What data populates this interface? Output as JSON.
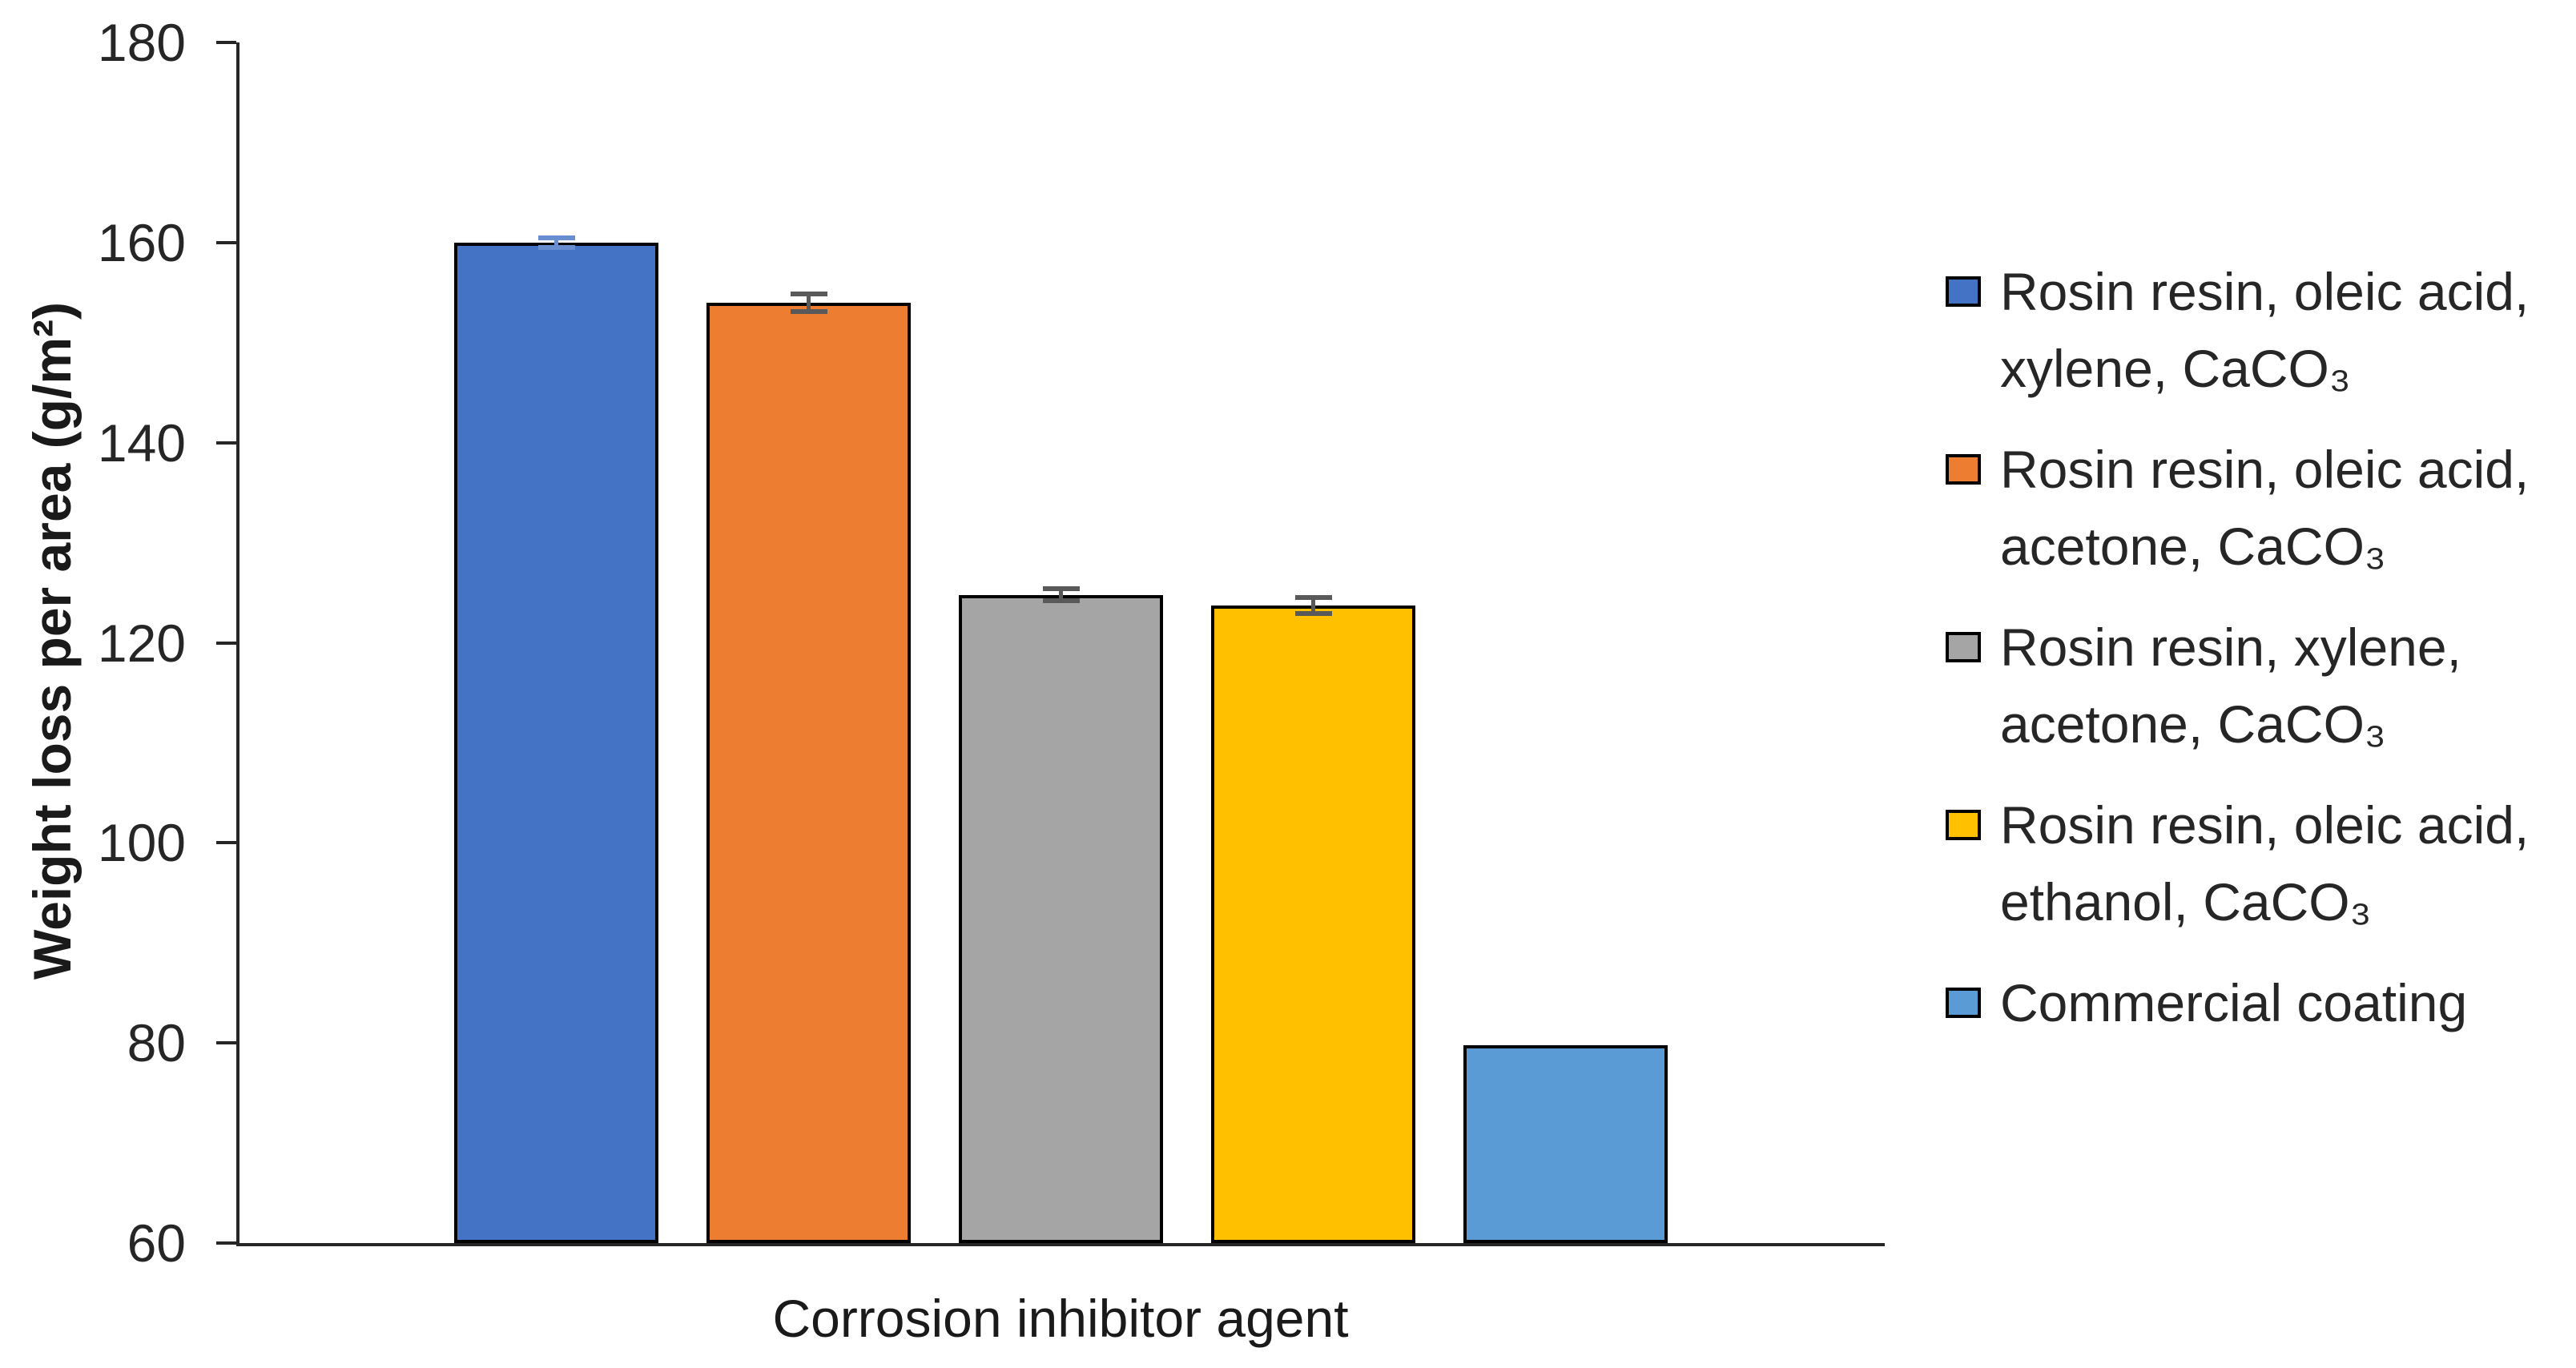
{
  "chart_data": {
    "type": "bar",
    "title": "",
    "xlabel": "Corrosion inhibitor agent",
    "ylabel": "Weight loss per area (g/m²)",
    "ylim": [
      60,
      180
    ],
    "yticks": [
      60,
      80,
      100,
      120,
      140,
      160,
      180
    ],
    "grid": false,
    "legend_position": "right",
    "categories": [
      "Corrosion inhibitor agent"
    ],
    "series": [
      {
        "name": "Rosin resin, oleic acid, xylene, CaCO₃",
        "legend_lines": [
          "Rosin resin, oleic acid,",
          "xylene, CaCO₃"
        ],
        "value": 160,
        "error": 0.5,
        "color": "#4472C4",
        "error_color": "#698ED0"
      },
      {
        "name": "Rosin resin, oleic acid, acetone, CaCO₃",
        "legend_lines": [
          "Rosin resin, oleic acid,",
          "acetone, CaCO₃"
        ],
        "value": 154,
        "error": 0.9,
        "color": "#ED7D31",
        "error_color": "#595959"
      },
      {
        "name": "Rosin resin, xylene, acetone, CaCO₃",
        "legend_lines": [
          "Rosin resin, xylene,",
          "acetone, CaCO₃"
        ],
        "value": 124.8,
        "error": 0.6,
        "color": "#A5A5A5",
        "error_color": "#595959"
      },
      {
        "name": "Rosin resin, oleic acid, ethanol, CaCO₃",
        "legend_lines": [
          "Rosin resin, oleic acid,",
          "ethanol, CaCO₃"
        ],
        "value": 123.7,
        "error": 0.8,
        "color": "#FFC000",
        "error_color": "#595959"
      },
      {
        "name": "Commercial coating",
        "legend_lines": [
          "Commercial coating"
        ],
        "value": 79.8,
        "error": 0,
        "color": "#5B9BD5",
        "error_color": "#595959"
      }
    ],
    "colors": {
      "axis": "#262626",
      "tick_text": "#262626",
      "bar_border": "#000000"
    }
  }
}
